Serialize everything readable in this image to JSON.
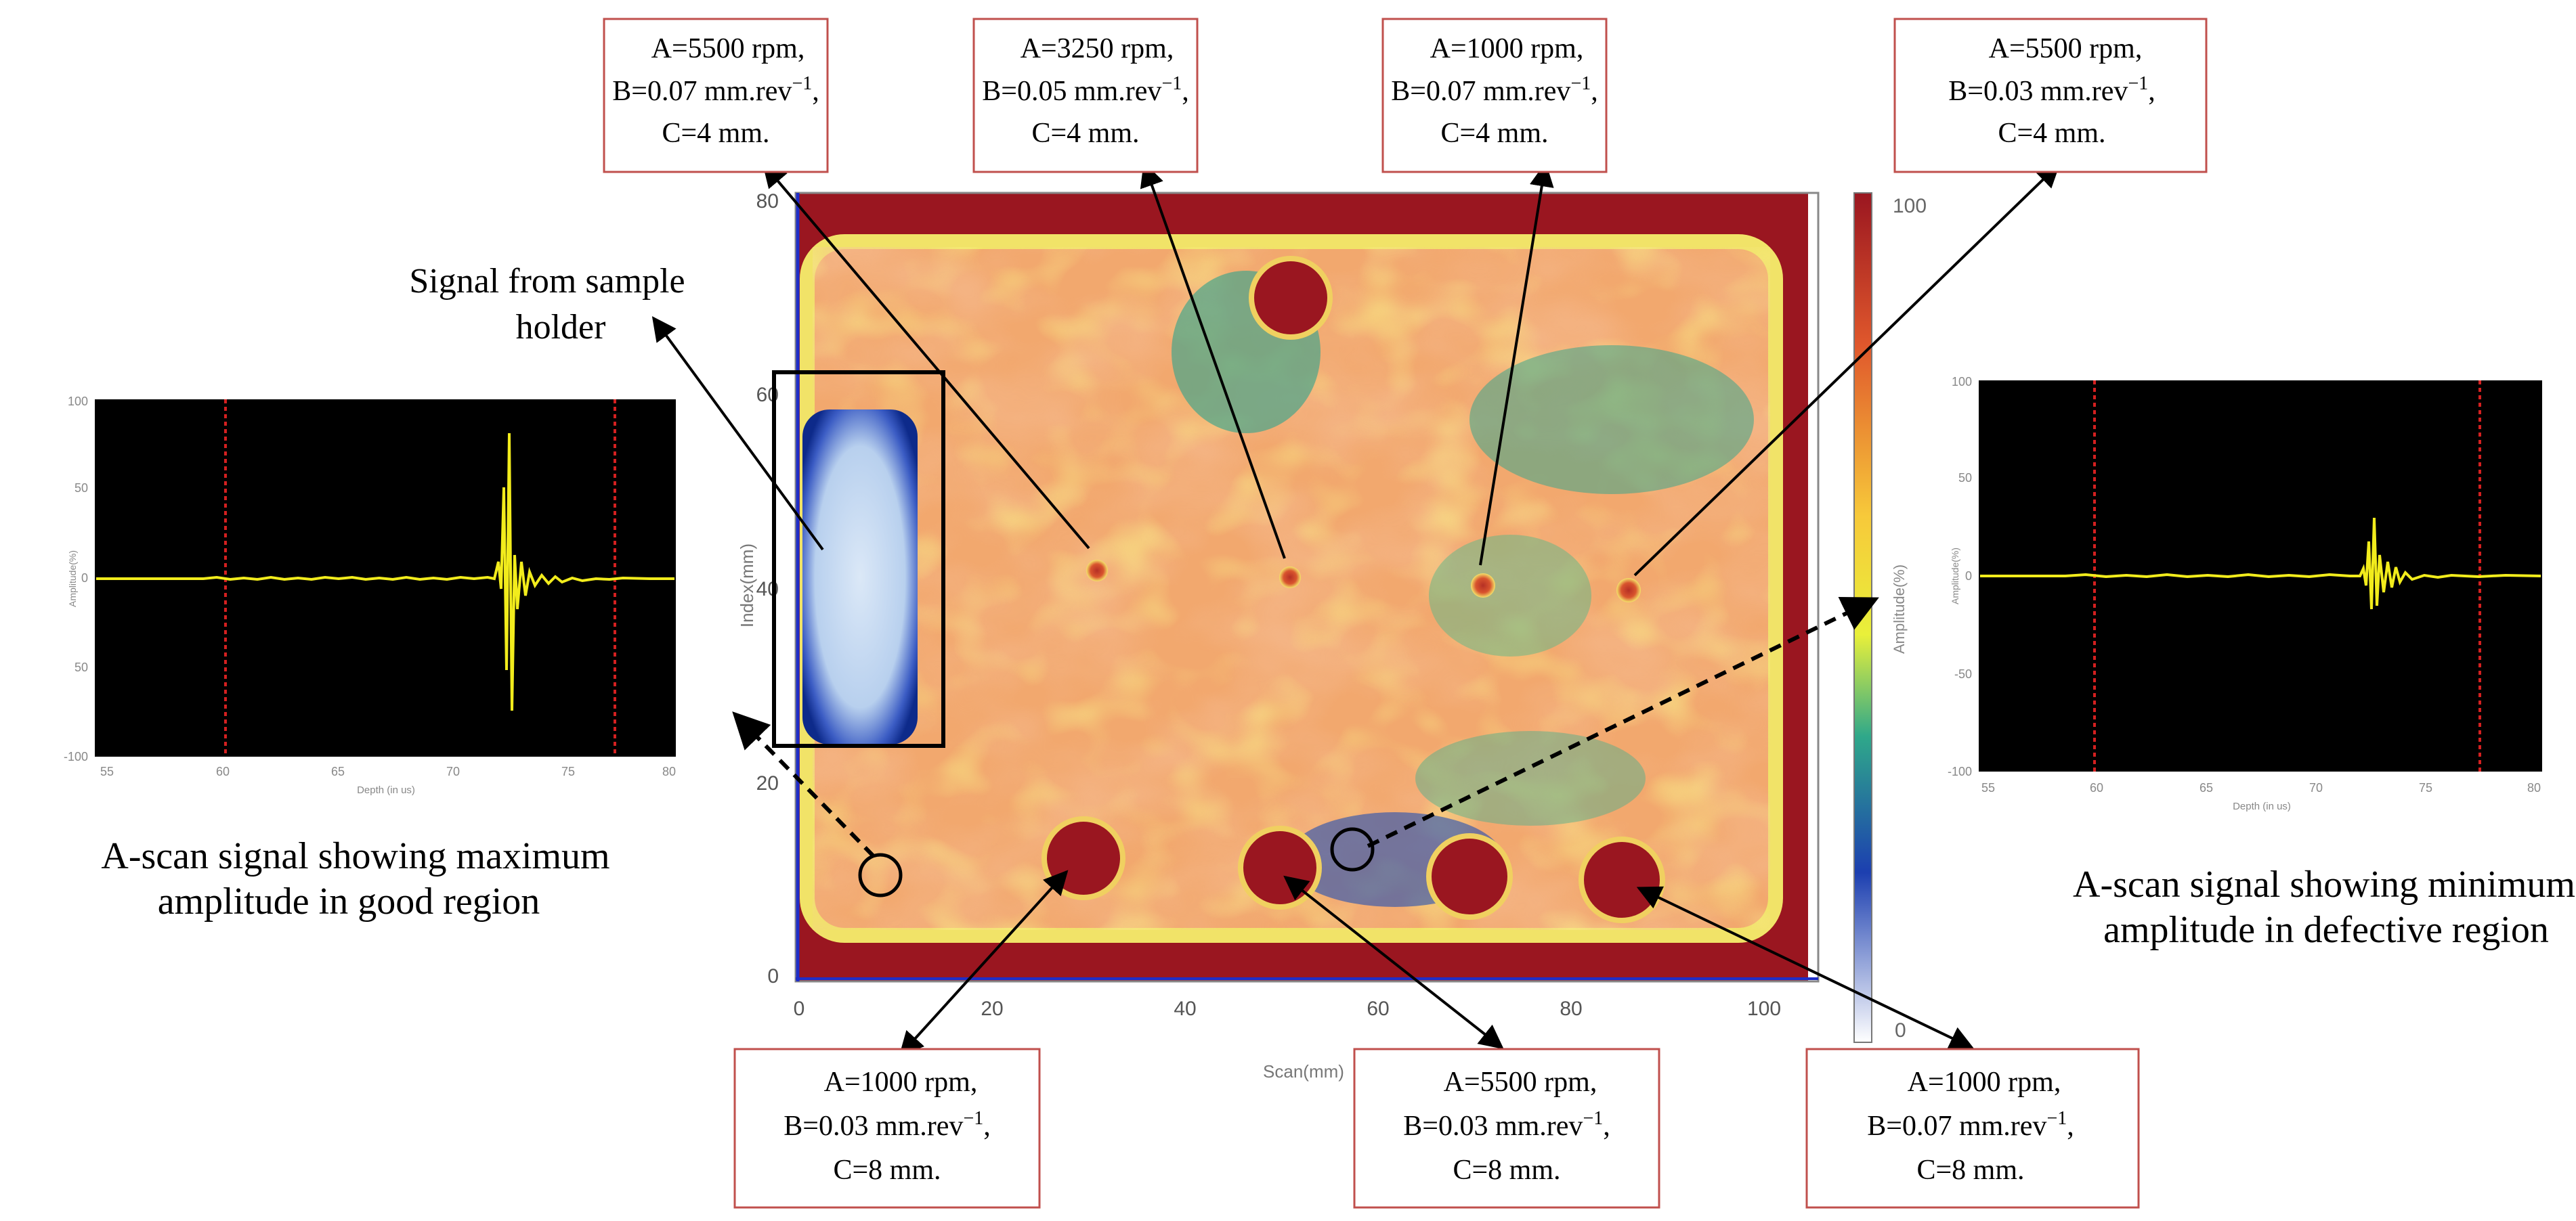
{
  "cscan": {
    "x_axis": {
      "label": "Scan(mm)",
      "ticks": [
        "0",
        "20",
        "40",
        "60",
        "80",
        "100"
      ]
    },
    "y_axis": {
      "label": "Index(mm)",
      "ticks": [
        "0",
        "20",
        "40",
        "60",
        "80"
      ]
    },
    "colorbar": {
      "max_label": "100",
      "min_label": "0",
      "label": "Amplitude(%)"
    }
  },
  "annotations": {
    "top": [
      {
        "a": "A=5500 rpm,",
        "b": "B=0.07 mm.rev",
        "b_sup": "−1",
        "b_tail": ",",
        "c": "C=4 mm."
      },
      {
        "a": "A=3250 rpm,",
        "b": "B=0.05 mm.rev",
        "b_sup": "−1",
        "b_tail": ",",
        "c": "C=4 mm."
      },
      {
        "a": "A=1000 rpm,",
        "b": "B=0.07 mm.rev",
        "b_sup": "−1",
        "b_tail": ",",
        "c": "C=4 mm."
      },
      {
        "a": "A=5500 rpm,",
        "b": "B=0.03 mm.rev",
        "b_sup": "−1",
        "b_tail": ",",
        "c": "C=4 mm."
      }
    ],
    "bottom": [
      {
        "a": "A=1000 rpm,",
        "b": "B=0.03 mm.rev",
        "b_sup": "−1",
        "b_tail": ",",
        "c": "C=8 mm."
      },
      {
        "a": "A=5500 rpm,",
        "b": "B=0.03 mm.rev",
        "b_sup": "−1",
        "b_tail": ",",
        "c": "C=8 mm."
      },
      {
        "a": "A=1000 rpm,",
        "b": "B=0.07 mm.rev",
        "b_sup": "−1",
        "b_tail": ",",
        "c": "C=8 mm."
      }
    ],
    "holder_label": [
      "Signal from sample",
      "holder"
    ],
    "left_caption": [
      "A-scan signal showing maximum",
      "amplitude in good region"
    ],
    "right_caption": [
      "A-scan signal showing minimum",
      "amplitude in defective region"
    ]
  },
  "ascan_left": {
    "y_ticks": [
      "100",
      "50",
      "0",
      "50",
      "-100"
    ],
    "x_ticks": [
      "55",
      "60",
      "65",
      "70",
      "75",
      "80"
    ],
    "x_label": "Depth (in us)",
    "y_label": "Amplitude(%)"
  },
  "ascan_right": {
    "y_ticks": [
      "100",
      "50",
      "0",
      "-50",
      "-100"
    ],
    "x_ticks": [
      "55",
      "60",
      "65",
      "70",
      "75",
      "80"
    ],
    "x_label": "Depth (in us)",
    "y_label": "Amplitude(%)"
  },
  "colors": {
    "defect_red": "#9a1620",
    "box_border": "#c0504d",
    "signal_yellow": "#f2ec1c",
    "gate_red": "#d42020",
    "axis_blue": "#1f2ec8"
  }
}
